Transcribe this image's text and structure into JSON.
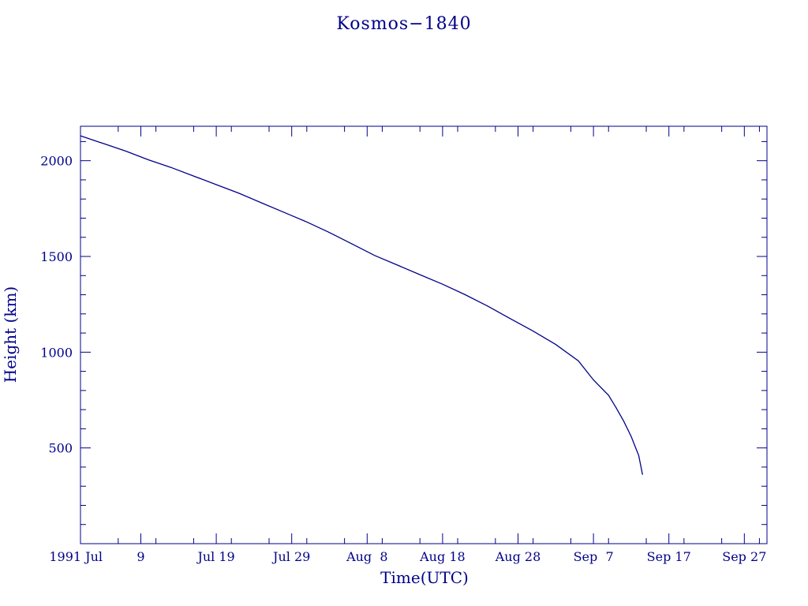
{
  "chart_data": {
    "type": "line",
    "title": "Kosmos−1840",
    "xlabel": "Time(UTC)",
    "ylabel": "Height (km)",
    "x_scale": "time",
    "xlim": [
      "1991-07-01",
      "1991-09-30"
    ],
    "ylim": [
      0,
      2180
    ],
    "x_tick_labels": [
      {
        "date": "1991-07-01",
        "label": "1991 Jul"
      },
      {
        "date": "1991-07-09",
        "label": "9"
      },
      {
        "date": "1991-07-19",
        "label": "Jul 19"
      },
      {
        "date": "1991-07-29",
        "label": "Jul 29"
      },
      {
        "date": "1991-08-08",
        "label": "Aug  8"
      },
      {
        "date": "1991-08-18",
        "label": "Aug 18"
      },
      {
        "date": "1991-08-28",
        "label": "Aug 28"
      },
      {
        "date": "1991-09-07",
        "label": "Sep  7"
      },
      {
        "date": "1991-09-17",
        "label": "Sep 17"
      },
      {
        "date": "1991-09-27",
        "label": "Sep 27"
      }
    ],
    "y_ticks": [
      500,
      1000,
      1500,
      2000
    ],
    "y_minor_step": 100,
    "grid": false,
    "color": "#00008b",
    "series": [
      {
        "x": [
          "1991-07-01",
          "1991-07-04",
          "1991-07-07",
          "1991-07-10",
          "1991-07-13",
          "1991-07-16",
          "1991-07-19",
          "1991-07-22",
          "1991-07-25",
          "1991-07-28",
          "1991-07-31",
          "1991-08-03",
          "1991-08-06",
          "1991-08-09",
          "1991-08-12",
          "1991-08-15",
          "1991-08-18",
          "1991-08-21",
          "1991-08-24",
          "1991-08-27",
          "1991-08-30",
          "1991-09-02",
          "1991-09-05",
          "1991-09-07",
          "1991-09-09",
          "1991-09-10",
          "1991-09-11",
          "1991-09-12",
          "1991-09-13",
          "1991-09-13T12:00"
        ],
        "values": [
          2130,
          2090,
          2050,
          2005,
          1965,
          1920,
          1875,
          1830,
          1780,
          1730,
          1680,
          1625,
          1565,
          1505,
          1455,
          1405,
          1355,
          1300,
          1240,
          1175,
          1110,
          1040,
          955,
          855,
          775,
          710,
          640,
          560,
          460,
          360
        ]
      }
    ]
  }
}
